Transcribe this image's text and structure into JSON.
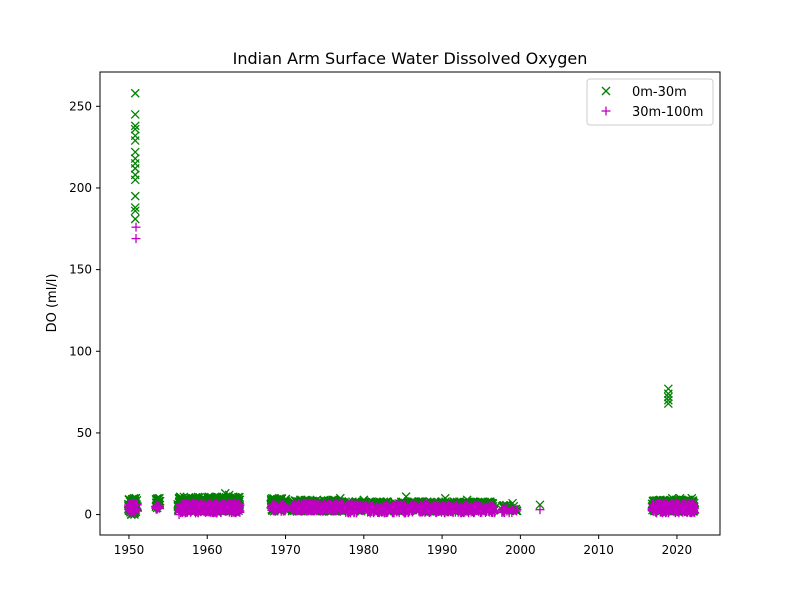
{
  "chart_data": {
    "type": "scatter",
    "title": "Indian Arm Surface Water Dissolved Oxygen",
    "xlabel": "",
    "ylabel": "DO (ml/l)",
    "xlim": [
      1946.3,
      2025.5
    ],
    "ylim": [
      -12.5,
      271
    ],
    "xticks": [
      1950,
      1960,
      1970,
      1980,
      1990,
      2000,
      2010,
      2020
    ],
    "yticks": [
      0,
      50,
      100,
      150,
      200,
      250
    ],
    "grid": false,
    "legend_position": "top-right",
    "series": [
      {
        "name": "0m-30m",
        "marker": "x",
        "color": "#008000",
        "points": [
          [
            1950.8,
            258
          ],
          [
            1950.8,
            245
          ],
          [
            1950.8,
            238
          ],
          [
            1950.8,
            236
          ],
          [
            1950.8,
            232
          ],
          [
            1950.8,
            229
          ],
          [
            1950.8,
            222
          ],
          [
            1950.8,
            218
          ],
          [
            1950.8,
            215
          ],
          [
            1950.8,
            212
          ],
          [
            1950.8,
            208
          ],
          [
            1950.8,
            205
          ],
          [
            1950.8,
            195
          ],
          [
            1950.8,
            188
          ],
          [
            1950.8,
            186
          ],
          [
            1950.8,
            181
          ],
          [
            1950.0,
            9
          ],
          [
            1950.1,
            2
          ],
          [
            1950.3,
            6
          ],
          [
            1950.5,
            8
          ],
          [
            1950.7,
            4
          ],
          [
            1950.9,
            10
          ],
          [
            1951.0,
            5
          ],
          [
            1953.5,
            9
          ],
          [
            1953.7,
            6
          ],
          [
            1953.9,
            10
          ],
          [
            1956.4,
            10
          ],
          [
            1957.0,
            9
          ],
          [
            1957.6,
            8
          ],
          [
            1958.2,
            10
          ],
          [
            1958.8,
            9
          ],
          [
            1959.4,
            10
          ],
          [
            1960.0,
            8
          ],
          [
            1960.6,
            9
          ],
          [
            1961.2,
            10
          ],
          [
            1961.8,
            9
          ],
          [
            1962.3,
            13
          ],
          [
            1962.8,
            12
          ],
          [
            1963.3,
            9
          ],
          [
            1963.8,
            10
          ],
          [
            1964.0,
            8
          ],
          [
            1968.3,
            10
          ],
          [
            1968.9,
            9
          ],
          [
            1969.5,
            10
          ],
          [
            1970.0,
            8
          ],
          [
            1971.0,
            7
          ],
          [
            1972.0,
            9
          ],
          [
            1973.0,
            8
          ],
          [
            1974.0,
            9
          ],
          [
            1975.0,
            8
          ],
          [
            1976.0,
            9
          ],
          [
            1977.0,
            10
          ],
          [
            1978.0,
            7
          ],
          [
            1979.0,
            8
          ],
          [
            1980.0,
            9
          ],
          [
            1981.0,
            8
          ],
          [
            1982.0,
            7
          ],
          [
            1983.0,
            8
          ],
          [
            1984.0,
            7
          ],
          [
            1985.4,
            11
          ],
          [
            1986.0,
            7
          ],
          [
            1987.0,
            8
          ],
          [
            1988.0,
            7
          ],
          [
            1989.0,
            6
          ],
          [
            1990.0,
            8
          ],
          [
            1990.4,
            10
          ],
          [
            1991.0,
            7
          ],
          [
            1992.0,
            6
          ],
          [
            1993.2,
            9
          ],
          [
            1994.0,
            8
          ],
          [
            1995.0,
            6
          ],
          [
            1996.0,
            5
          ],
          [
            1997.8,
            5
          ],
          [
            1999.0,
            7
          ],
          [
            2002.5,
            6
          ],
          [
            2017.0,
            6
          ],
          [
            2017.5,
            5
          ],
          [
            2018.0,
            7
          ],
          [
            2018.5,
            8
          ],
          [
            2018.9,
            77
          ],
          [
            2018.9,
            74
          ],
          [
            2018.9,
            72
          ],
          [
            2018.9,
            70
          ],
          [
            2018.9,
            68
          ],
          [
            2019.4,
            10
          ],
          [
            2019.9,
            9
          ],
          [
            2020.4,
            10
          ],
          [
            2020.9,
            8
          ],
          [
            2021.4,
            9
          ],
          [
            2021.9,
            10
          ],
          [
            2022.2,
            7
          ]
        ]
      },
      {
        "name": "30m-100m",
        "marker": "+",
        "color": "#c000c0",
        "points": [
          [
            1950.9,
            176
          ],
          [
            1950.9,
            169
          ],
          [
            1950.3,
            4
          ],
          [
            1950.6,
            5
          ],
          [
            1951.0,
            6
          ],
          [
            1953.7,
            4
          ],
          [
            1953.9,
            5
          ],
          [
            1956.4,
            0
          ],
          [
            1956.9,
            5
          ],
          [
            1957.6,
            6
          ],
          [
            1958.3,
            5
          ],
          [
            1959.0,
            4
          ],
          [
            1959.7,
            5
          ],
          [
            1960.4,
            4
          ],
          [
            1961.1,
            5
          ],
          [
            1961.8,
            4
          ],
          [
            1962.5,
            5
          ],
          [
            1963.2,
            4
          ],
          [
            1963.9,
            5
          ],
          [
            1968.5,
            4
          ],
          [
            1969.5,
            5
          ],
          [
            1970.0,
            4
          ],
          [
            1971.0,
            5
          ],
          [
            1972.0,
            4
          ],
          [
            1973.0,
            5
          ],
          [
            1974.0,
            4
          ],
          [
            1975.0,
            5
          ],
          [
            1976.0,
            4
          ],
          [
            1977.0,
            5
          ],
          [
            1978.0,
            4
          ],
          [
            1979.0,
            4
          ],
          [
            1980.0,
            5
          ],
          [
            1981.0,
            4
          ],
          [
            1982.0,
            3
          ],
          [
            1983.0,
            4
          ],
          [
            1984.0,
            4
          ],
          [
            1985.0,
            5
          ],
          [
            1986.0,
            4
          ],
          [
            1987.0,
            4
          ],
          [
            1988.0,
            5
          ],
          [
            1989.0,
            4
          ],
          [
            1990.0,
            5
          ],
          [
            1991.0,
            4
          ],
          [
            1992.0,
            4
          ],
          [
            1993.0,
            5
          ],
          [
            1994.0,
            4
          ],
          [
            1995.0,
            3
          ],
          [
            1996.0,
            4
          ],
          [
            1998.0,
            3
          ],
          [
            1999.0,
            3
          ],
          [
            2002.5,
            3
          ],
          [
            2017.0,
            4
          ],
          [
            2017.8,
            5
          ],
          [
            2018.5,
            4
          ],
          [
            2019.2,
            5
          ],
          [
            2019.9,
            4
          ],
          [
            2020.6,
            5
          ],
          [
            2021.3,
            4
          ],
          [
            2022.0,
            5
          ]
        ]
      }
    ],
    "clusters": [
      {
        "series": 0,
        "x_range": [
          1949.9,
          1951.1
        ],
        "y_range": [
          0,
          10
        ],
        "count": 70
      },
      {
        "series": 0,
        "x_range": [
          1953.4,
          1954.0
        ],
        "y_range": [
          4,
          10
        ],
        "count": 25
      },
      {
        "series": 0,
        "x_range": [
          1956.2,
          1964.2
        ],
        "y_range": [
          2,
          11
        ],
        "count": 360
      },
      {
        "series": 0,
        "x_range": [
          1968.1,
          1970.1
        ],
        "y_range": [
          2,
          10
        ],
        "count": 90
      },
      {
        "series": 0,
        "x_range": [
          1970.8,
          1977.3
        ],
        "y_range": [
          2,
          9
        ],
        "count": 260
      },
      {
        "series": 0,
        "x_range": [
          1977.6,
          1996.8
        ],
        "y_range": [
          2,
          8
        ],
        "count": 520
      },
      {
        "series": 0,
        "x_range": [
          1997.6,
          1999.6
        ],
        "y_range": [
          2,
          6
        ],
        "count": 25
      },
      {
        "series": 0,
        "x_range": [
          2016.8,
          2022.3
        ],
        "y_range": [
          2,
          9
        ],
        "count": 260
      },
      {
        "series": 1,
        "x_range": [
          1949.9,
          1951.1
        ],
        "y_range": [
          1,
          7
        ],
        "count": 40
      },
      {
        "series": 1,
        "x_range": [
          1953.4,
          1954.0
        ],
        "y_range": [
          3,
          6
        ],
        "count": 15
      },
      {
        "series": 1,
        "x_range": [
          1956.4,
          1964.2
        ],
        "y_range": [
          1,
          7
        ],
        "count": 330
      },
      {
        "series": 1,
        "x_range": [
          1968.2,
          1970.1
        ],
        "y_range": [
          2,
          6
        ],
        "count": 60
      },
      {
        "series": 1,
        "x_range": [
          1970.8,
          1977.3
        ],
        "y_range": [
          2,
          7
        ],
        "count": 240
      },
      {
        "series": 1,
        "x_range": [
          1977.6,
          1996.8
        ],
        "y_range": [
          1,
          6
        ],
        "count": 480
      },
      {
        "series": 1,
        "x_range": [
          1997.6,
          1999.6
        ],
        "y_range": [
          1,
          4
        ],
        "count": 20
      },
      {
        "series": 1,
        "x_range": [
          2016.8,
          2022.3
        ],
        "y_range": [
          1,
          7
        ],
        "count": 230
      }
    ]
  }
}
